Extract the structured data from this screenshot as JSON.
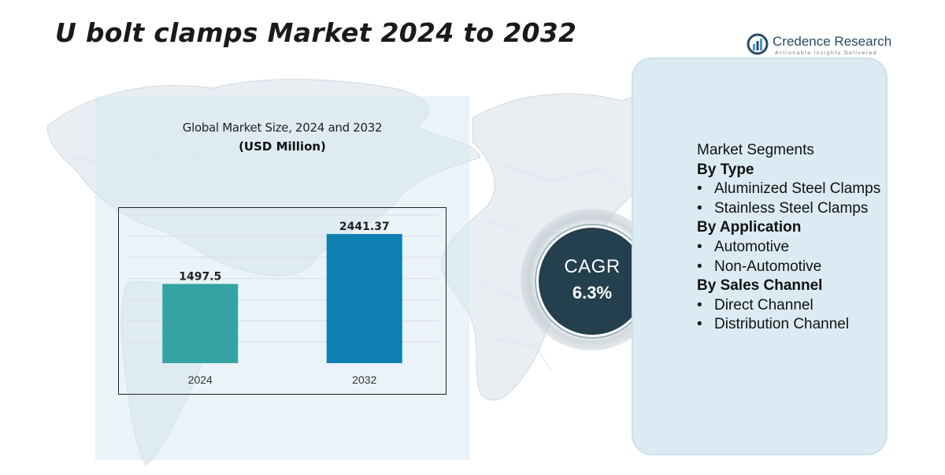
{
  "title": "U bolt clamps Market 2024 to 2032",
  "brand": {
    "name": "Credence Research",
    "tagline": "Actionable Insights Delivered"
  },
  "chart_data": {
    "type": "bar",
    "title": "Global Market Size, 2024 and 2032",
    "subtitle": "(USD Million)",
    "categories": [
      "2024",
      "2032"
    ],
    "values": [
      1497.5,
      2441.37
    ],
    "value_labels": [
      "1497.5",
      "2441.37"
    ],
    "colors": [
      "#35a3a3",
      "#0e7fb1"
    ],
    "ylim": [
      0,
      2800
    ],
    "grid": true,
    "xlabel": "",
    "ylabel": ""
  },
  "cagr": {
    "label": "CAGR",
    "value": "6.3%"
  },
  "segments": {
    "heading": "Market Segments",
    "groups": [
      {
        "title": "By Type",
        "items": [
          "Aluminized Steel Clamps",
          "Stainless Steel Clamps"
        ]
      },
      {
        "title": "By Application",
        "items": [
          "Automotive",
          "Non-Automotive"
        ]
      },
      {
        "title": "By Sales Channel",
        "items": [
          "Direct Channel",
          "Distribution Channel"
        ]
      }
    ]
  },
  "colors": {
    "panel": "#d7e9f3",
    "card": "#dcebf3",
    "cagr_bg": "#243f4d",
    "brand": "#2b4a63"
  }
}
